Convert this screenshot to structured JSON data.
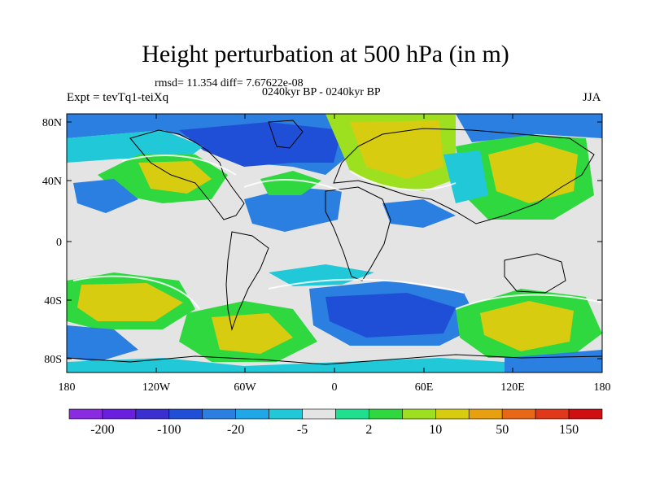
{
  "title": "Height perturbation at 500 hPa (in m)",
  "stats": "rmsd= 11.354  diff= 7.67622e-08",
  "period": "0240kyr BP - 0240kyr BP",
  "expt": "Expt = tevTq1-teiXq",
  "season": "JJA",
  "map": {
    "lat_ticks": [
      "80N",
      "40N",
      "0",
      "40S",
      "80S"
    ],
    "lon_ticks": [
      "180",
      "120W",
      "60W",
      "0",
      "60E",
      "120E",
      "180"
    ]
  },
  "colorbar": {
    "colors": [
      "#8a2be2",
      "#6a1fe0",
      "#3b2fcf",
      "#1f4fd6",
      "#2a7fe0",
      "#1fa7e8",
      "#20c8d8",
      "#e4e4e4",
      "#20e090",
      "#30d840",
      "#9de020",
      "#d8cc10",
      "#e8a010",
      "#e86818",
      "#e03818",
      "#d01010"
    ],
    "labels": [
      "-200",
      "-100",
      "-20",
      "-5",
      "2",
      "10",
      "50",
      "150"
    ]
  },
  "colors": {
    "land_outline": "#000000",
    "background": "#e4e4e4"
  }
}
